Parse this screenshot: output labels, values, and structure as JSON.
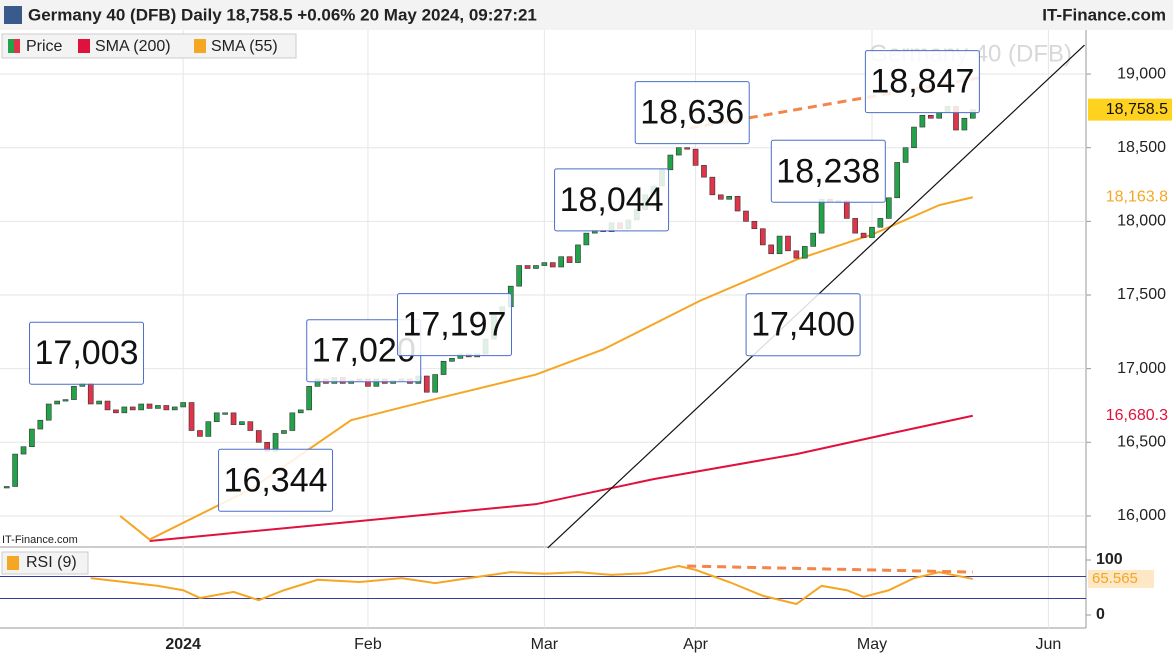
{
  "header": {
    "title": "Germany 40 (DFB) Daily 18,758.5 +0.06% 20 May 2024, 09:27:21",
    "brand": "IT-Finance.com"
  },
  "chart_data": [
    {
      "type": "candlestick",
      "watermark": "Germany 40 (DFB)",
      "source": "IT-Finance.com",
      "legend": [
        "Price"
      ],
      "up_color": "#22a34a",
      "down_color": "#e0344a",
      "xlim": [
        -0.8,
        128
      ],
      "ylim": [
        15796,
        19299
      ],
      "xticks": [
        {
          "value": 21,
          "label": "2024"
        },
        {
          "value": 43,
          "label": "Feb"
        },
        {
          "value": 64,
          "label": "Mar"
        },
        {
          "value": 82,
          "label": "Apr"
        },
        {
          "value": 103,
          "label": "May"
        },
        {
          "value": 124,
          "label": "Jun"
        }
      ],
      "yticks": [
        {
          "value": 16000,
          "label": "16,000"
        },
        {
          "value": 16500,
          "label": "16,500"
        },
        {
          "value": 17000,
          "label": "17,000"
        },
        {
          "value": 17500,
          "label": "17,500"
        },
        {
          "value": 18000,
          "label": "18,000"
        },
        {
          "value": 18500,
          "label": "18,500"
        },
        {
          "value": 19000,
          "label": "19,000"
        }
      ],
      "grid": true,
      "close": [
        16200,
        16420,
        16470,
        16590,
        16650,
        16760,
        16780,
        16790,
        16880,
        16900,
        16760,
        16780,
        16720,
        16700,
        16740,
        16720,
        16760,
        16730,
        16750,
        16720,
        16740,
        16770,
        16580,
        16540,
        16640,
        16700,
        16700,
        16620,
        16640,
        16580,
        16500,
        16440,
        16560,
        16580,
        16700,
        16720,
        16880,
        16930,
        16900,
        16940,
        16900,
        16920,
        16930,
        16880,
        16930,
        16900,
        16920,
        16930,
        16900,
        16950,
        16840,
        16960,
        17050,
        17070,
        17100,
        17080,
        17100,
        17200,
        17380,
        17420,
        17560,
        17700,
        17680,
        17700,
        17720,
        17690,
        17760,
        17720,
        17840,
        17920,
        17940,
        17930,
        17990,
        17950,
        18010,
        18080,
        18180,
        18240,
        18350,
        18450,
        18500,
        18490,
        18380,
        18300,
        18180,
        18150,
        18170,
        18070,
        18000,
        17950,
        17840,
        17780,
        17900,
        17800,
        17750,
        17830,
        17920,
        18150,
        18130,
        18140,
        18020,
        17920,
        17890,
        17960,
        18020,
        18160,
        18400,
        18500,
        18640,
        18720,
        18700,
        18740,
        18780,
        18620,
        18700,
        18758.5
      ],
      "series": [
        {
          "name": "SMA (200)",
          "color": "#e0113c",
          "x": [
            17,
            41,
            63,
            77,
            94,
            106,
            115
          ],
          "values": [
            15830,
            15960,
            16080,
            16250,
            16420,
            16570,
            16680.3
          ],
          "value_labels": [
            null,
            null,
            null,
            null,
            null,
            null,
            "16,680.3"
          ]
        },
        {
          "name": "SMA (55)",
          "color": "#f5a623",
          "x": [
            13.5,
            17,
            29,
            41,
            50,
            63,
            71,
            82.5,
            94,
            103,
            111,
            115
          ],
          "values": [
            16000,
            15840,
            16180,
            16650,
            16780,
            16960,
            17130,
            17460,
            17740,
            17910,
            18110,
            18163.8
          ],
          "value_labels": [
            null,
            null,
            null,
            null,
            null,
            null,
            null,
            null,
            null,
            null,
            null,
            "18,163.8"
          ]
        }
      ],
      "last_price": {
        "value": 18758.5,
        "label": "18,758.5"
      },
      "trendline": {
        "x": [
          64.4,
          128.3
        ],
        "values": [
          15783,
          19197
        ],
        "color": "#111111"
      },
      "resistance": {
        "x": [
          81.3,
          116.4
        ],
        "values": [
          18633,
          18980
        ],
        "color": "#f5844a"
      },
      "annotations": [
        {
          "label": "17,003",
          "value": 17003,
          "x": 9.5,
          "kind": "high"
        },
        {
          "label": "16,344",
          "value": 16344,
          "x": 32,
          "kind": "low"
        },
        {
          "label": "17,020",
          "value": 17020,
          "x": 42.5,
          "kind": "high"
        },
        {
          "label": "17,197",
          "value": 17197,
          "x": 53.3,
          "kind": "high"
        },
        {
          "label": "18,044",
          "value": 18044,
          "x": 72,
          "kind": "high"
        },
        {
          "label": "18,636",
          "value": 18636,
          "x": 81.6,
          "kind": "high"
        },
        {
          "label": "18,238",
          "value": 18238,
          "x": 97.8,
          "kind": "high"
        },
        {
          "label": "17,400",
          "value": 17400,
          "x": 94.8,
          "kind": "low"
        },
        {
          "label": "18,847",
          "value": 18847,
          "x": 109,
          "kind": "high"
        }
      ]
    },
    {
      "type": "line",
      "legend": "RSI (9)",
      "color": "#f5a623",
      "xlim": [
        -0.8,
        128
      ],
      "ylim": [
        -23.6,
        121.8
      ],
      "yticks": [
        0,
        100
      ],
      "levels": [
        30,
        70
      ],
      "x": [
        10,
        14,
        18,
        21,
        23,
        27,
        30,
        33,
        37,
        42,
        47,
        51,
        55,
        60,
        64,
        68,
        72,
        76,
        80,
        82,
        86,
        90,
        94,
        97,
        100,
        102,
        105,
        108,
        111,
        115
      ],
      "values": [
        67,
        60,
        53,
        45,
        31,
        42,
        27,
        45,
        64,
        60,
        67,
        58,
        67,
        78,
        75,
        78,
        73,
        76,
        89,
        82,
        60,
        35,
        20,
        53,
        45,
        33,
        45,
        67,
        78,
        65.565
      ],
      "value_labels": [
        null,
        null,
        null,
        null,
        null,
        null,
        null,
        null,
        null,
        null,
        null,
        null,
        null,
        null,
        null,
        null,
        null,
        null,
        null,
        null,
        null,
        null,
        null,
        null,
        null,
        null,
        null,
        null,
        null,
        "65.565"
      ],
      "divergence": {
        "x": [
          81,
          115
        ],
        "values": [
          89,
          78
        ],
        "color": "#f5844a"
      }
    }
  ]
}
